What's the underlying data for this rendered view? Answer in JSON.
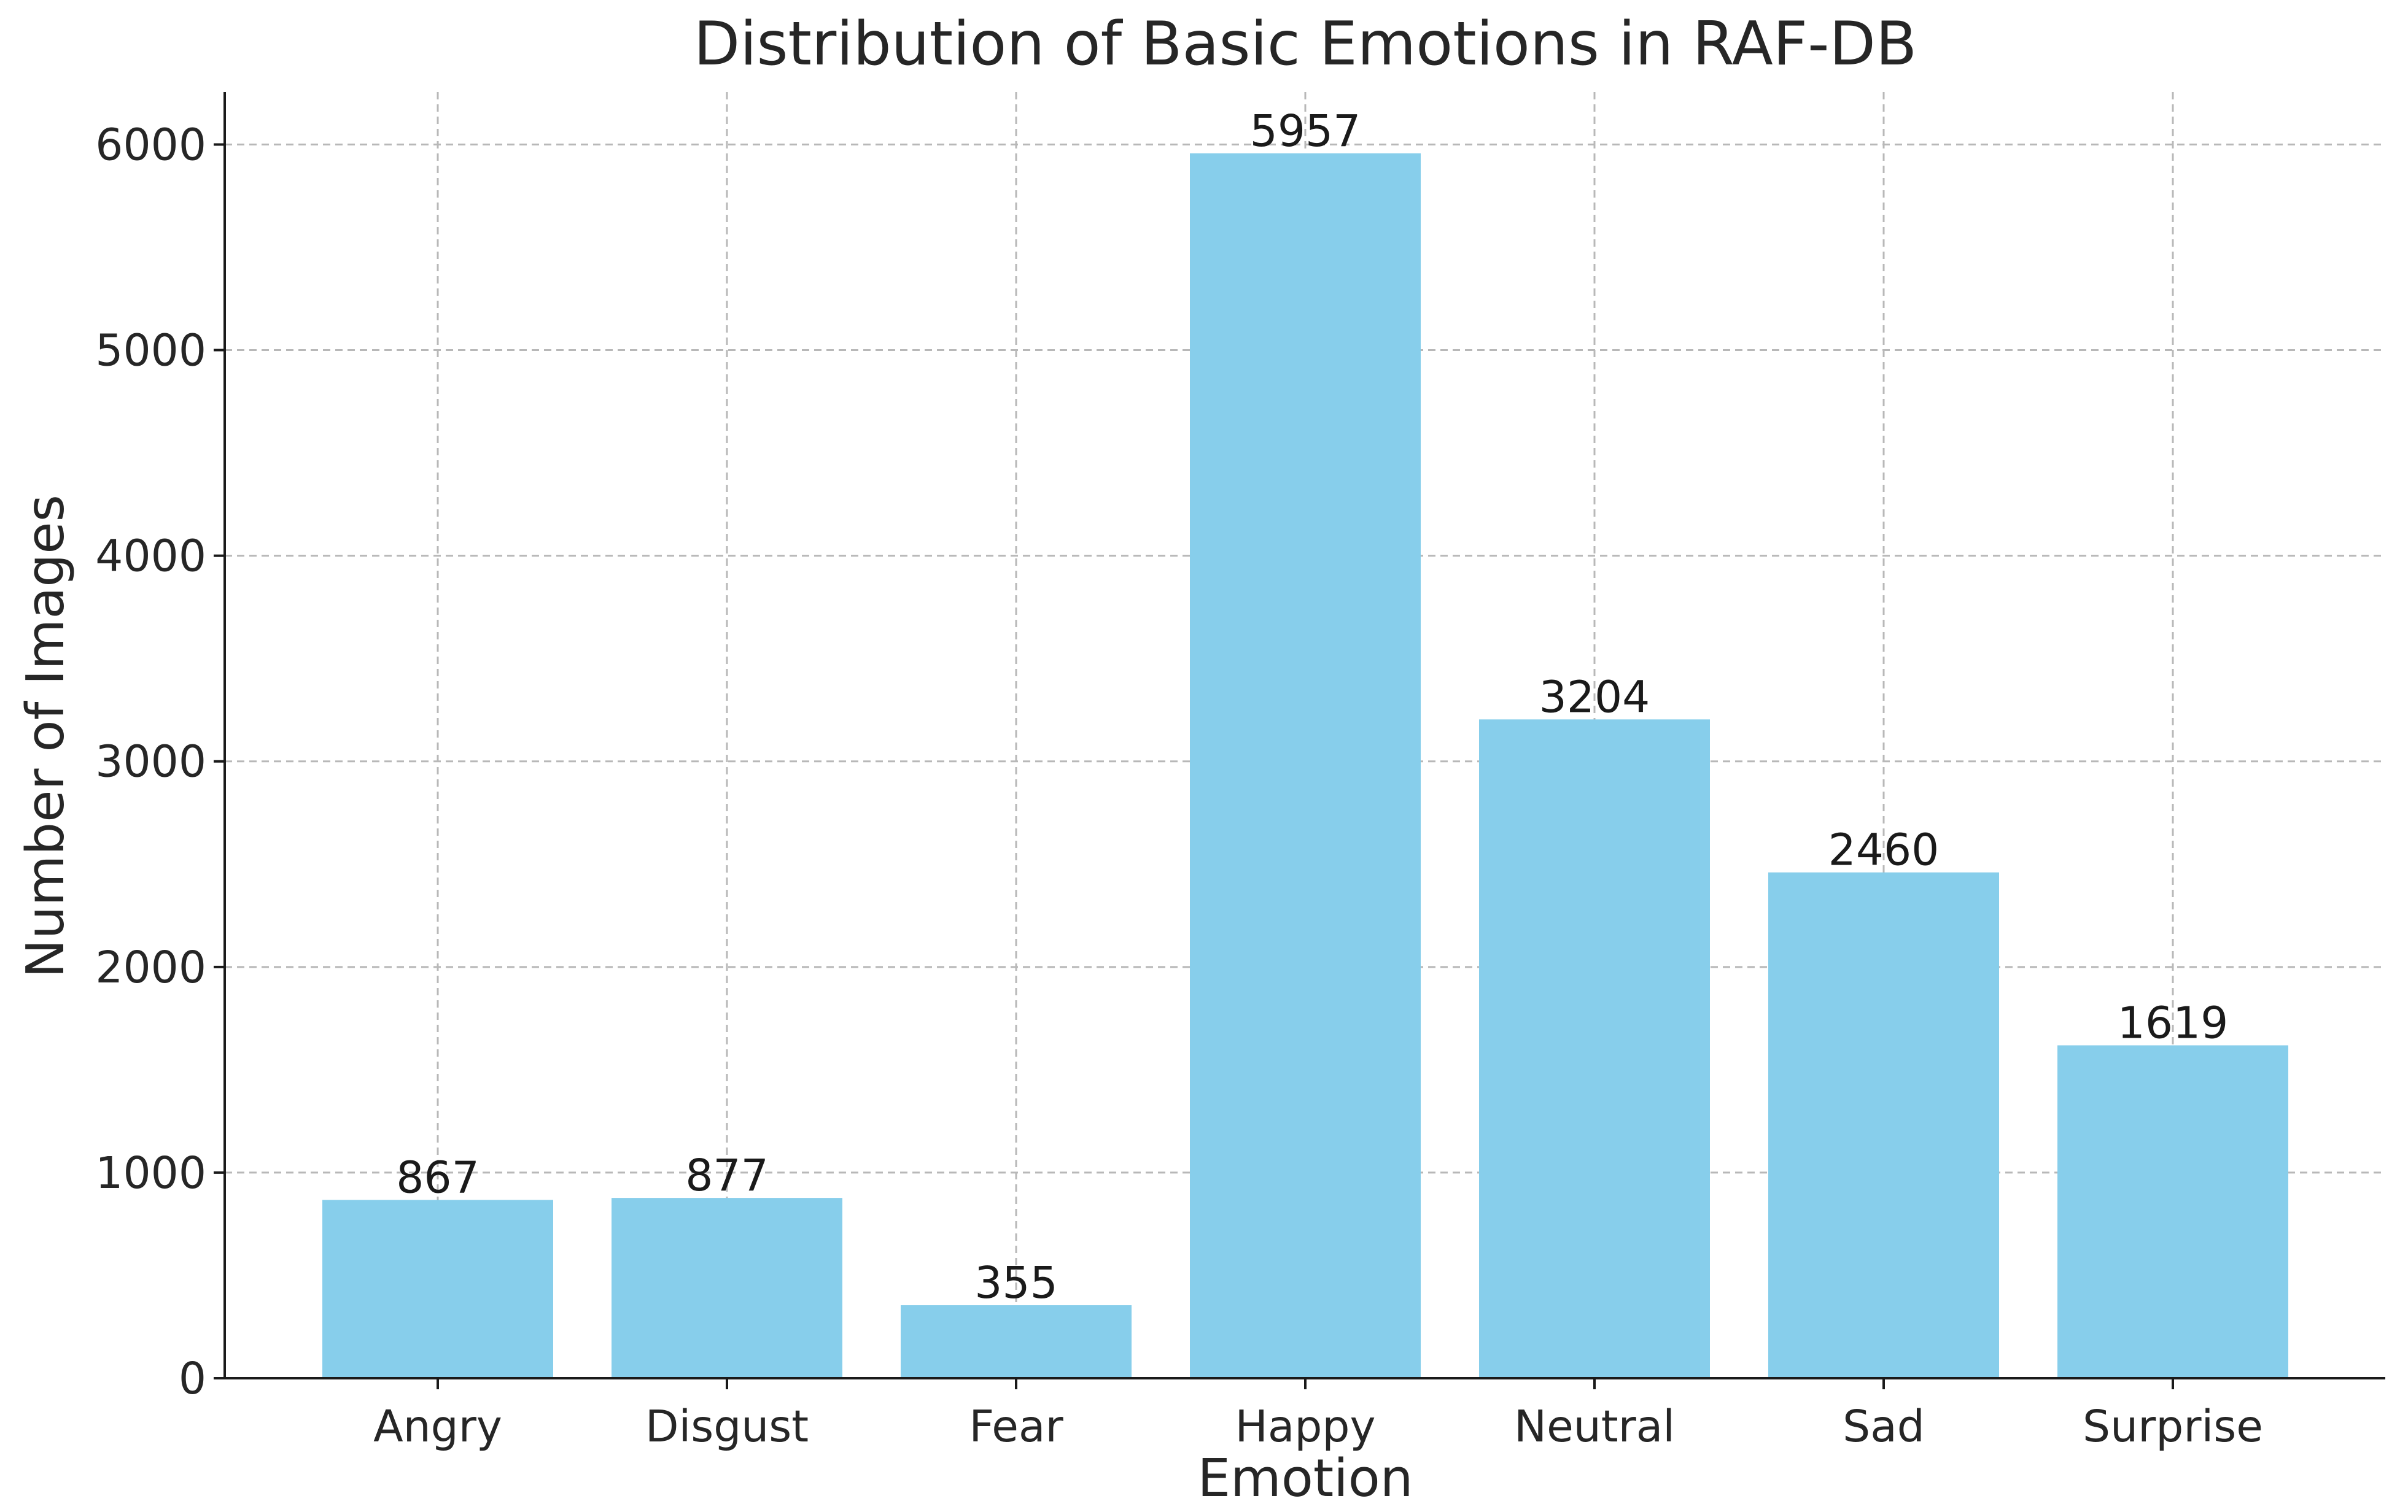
{
  "chart_data": {
    "type": "bar",
    "title": "Distribution of Basic Emotions in RAF-DB",
    "xlabel": "Emotion",
    "ylabel": "Number of Images",
    "categories": [
      "Angry",
      "Disgust",
      "Fear",
      "Happy",
      "Neutral",
      "Sad",
      "Surprise"
    ],
    "values": [
      867,
      877,
      355,
      5957,
      3204,
      2460,
      1619
    ],
    "data_labels": [
      "867",
      "877",
      "355",
      "5957",
      "3204",
      "2460",
      "1619"
    ],
    "ylim": [
      0,
      6255
    ],
    "yticks": [
      0,
      1000,
      2000,
      3000,
      4000,
      5000,
      6000
    ],
    "ytick_labels": [
      "0",
      "1000",
      "2000",
      "3000",
      "4000",
      "5000",
      "6000"
    ],
    "grid": true,
    "bar_color": "#87ceeb"
  }
}
